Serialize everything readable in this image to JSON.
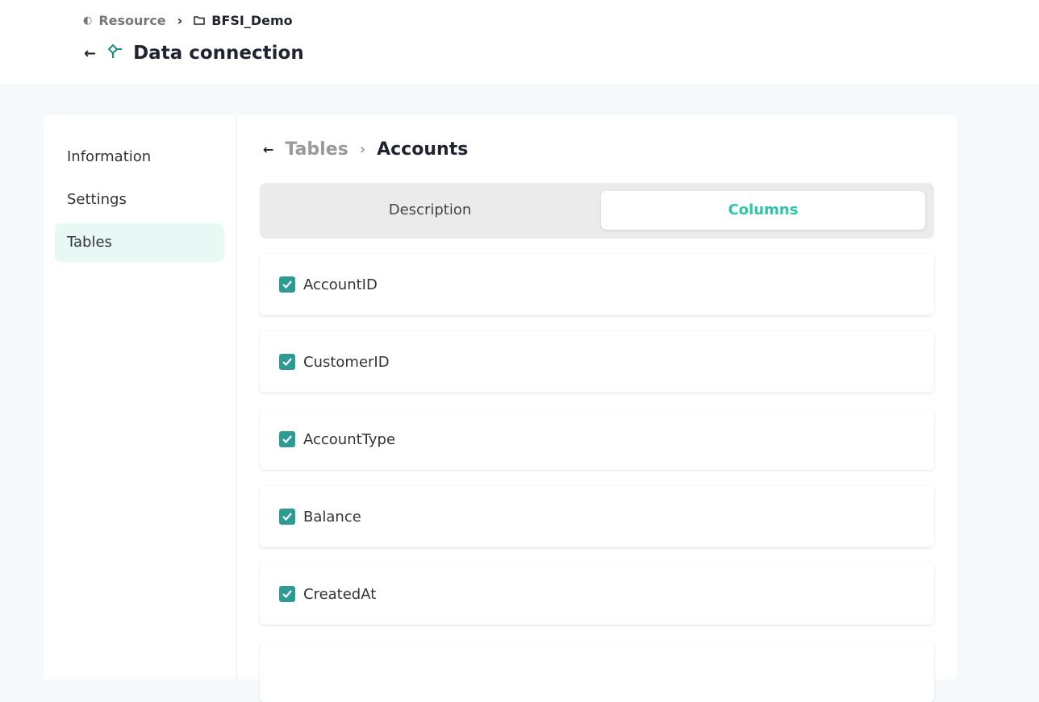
{
  "breadcrumb": {
    "resource": "Resource",
    "separator": "›",
    "folder": "BFSI_Demo"
  },
  "header": {
    "title": "Data connection"
  },
  "sidebar": {
    "items": [
      {
        "label": "Information"
      },
      {
        "label": "Settings"
      },
      {
        "label": "Tables",
        "active": true
      }
    ]
  },
  "subheader": {
    "parent": "Tables",
    "separator": "›",
    "current": "Accounts"
  },
  "tabs": [
    {
      "label": "Description"
    },
    {
      "label": "Columns",
      "active": true
    }
  ],
  "columns": [
    {
      "name": "AccountID",
      "checked": true
    },
    {
      "name": "CustomerID",
      "checked": true
    },
    {
      "name": "AccountType",
      "checked": true
    },
    {
      "name": "Balance",
      "checked": true
    },
    {
      "name": "CreatedAt",
      "checked": true
    }
  ],
  "colors": {
    "accent": "#2ec4a6",
    "checkbox": "#2e9a94",
    "active_nav": "#e8f8f4"
  }
}
